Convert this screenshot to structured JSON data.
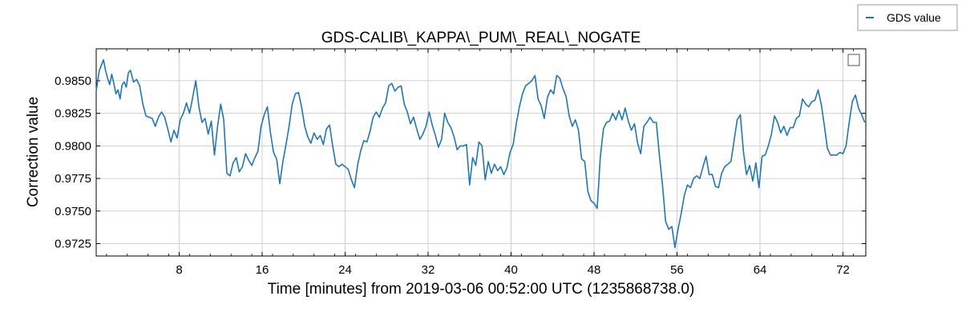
{
  "chart_data": {
    "type": "line",
    "title": "GDS-CALIB\\_KAPPA\\_PUM\\_REAL\\_NOGATE",
    "xlabel": "Time [minutes] from 2019-03-06 00:52:00 UTC (1235868738.0)",
    "ylabel": "Correction value",
    "xlim": [
      0,
      74.2
    ],
    "ylim": [
      0.97155,
      0.98745
    ],
    "xticks": [
      8,
      16,
      24,
      32,
      40,
      48,
      56,
      64,
      72
    ],
    "yticks": [
      0.9725,
      0.975,
      0.9775,
      0.98,
      0.9825,
      0.985
    ],
    "xtick_labels": [
      "8",
      "16",
      "24",
      "32",
      "40",
      "48",
      "56",
      "64",
      "72"
    ],
    "ytick_labels": [
      "0.9725",
      "0.9750",
      "0.9775",
      "0.9800",
      "0.9825",
      "0.9850"
    ],
    "grid": true,
    "legend": {
      "placement": "outside top-right",
      "entries": [
        "GDS value"
      ]
    },
    "series": [
      {
        "name": "GDS value",
        "color": "#1f77b4",
        "x": [
          0.0,
          0.3,
          0.5,
          0.7,
          0.9,
          1.1,
          1.3,
          1.5,
          1.7,
          1.9,
          2.1,
          2.3,
          2.5,
          2.7,
          2.9,
          3.1,
          3.3,
          3.6,
          3.9,
          4.2,
          4.5,
          4.8,
          5.1,
          5.4,
          5.7,
          6.0,
          6.3,
          6.6,
          6.9,
          7.2,
          7.5,
          7.8,
          8.1,
          8.4,
          8.7,
          9.0,
          9.3,
          9.6,
          9.9,
          10.2,
          10.5,
          10.8,
          11.1,
          11.4,
          11.7,
          12.0,
          12.3,
          12.6,
          12.9,
          13.2,
          13.5,
          13.8,
          14.1,
          14.4,
          14.7,
          15.0,
          15.3,
          15.6,
          15.9,
          16.2,
          16.5,
          16.8,
          17.1,
          17.4,
          17.7,
          18.0,
          18.3,
          18.6,
          18.9,
          19.2,
          19.5,
          19.8,
          20.1,
          20.4,
          20.7,
          21.0,
          21.3,
          21.6,
          21.9,
          22.2,
          22.5,
          22.8,
          23.1,
          23.4,
          23.7,
          24.0,
          24.3,
          24.6,
          24.9,
          25.2,
          25.5,
          25.8,
          26.1,
          26.4,
          26.7,
          27.0,
          27.3,
          27.6,
          27.9,
          28.2,
          28.5,
          28.8,
          29.1,
          29.4,
          29.7,
          30.0,
          30.3,
          30.6,
          30.9,
          31.2,
          31.5,
          31.8,
          32.1,
          32.4,
          32.7,
          33.0,
          33.3,
          33.6,
          33.9,
          34.2,
          34.5,
          34.8,
          35.1,
          35.4,
          35.7,
          36.0,
          36.3,
          36.6,
          36.9,
          37.2,
          37.5,
          37.8,
          38.1,
          38.4,
          38.7,
          39.0,
          39.3,
          39.6,
          39.9,
          40.2,
          40.5,
          40.8,
          41.1,
          41.4,
          41.7,
          42.0,
          42.3,
          42.6,
          42.9,
          43.2,
          43.5,
          43.8,
          44.1,
          44.4,
          44.7,
          45.0,
          45.3,
          45.6,
          45.9,
          46.2,
          46.5,
          46.8,
          47.1,
          47.4,
          47.7,
          48.0,
          48.3,
          48.6,
          48.9,
          49.2,
          49.5,
          49.8,
          50.1,
          50.4,
          50.7,
          51.0,
          51.3,
          51.6,
          51.9,
          52.2,
          52.5,
          52.8,
          53.1,
          53.4,
          53.7,
          54.0,
          54.3,
          54.6,
          54.9,
          55.2,
          55.5,
          55.8,
          56.1,
          56.4,
          56.7,
          57.0,
          57.3,
          57.6,
          57.9,
          58.2,
          58.5,
          58.8,
          59.1,
          59.4,
          59.7,
          60.0,
          60.3,
          60.6,
          60.9,
          61.2,
          61.5,
          61.8,
          62.1,
          62.4,
          62.7,
          63.0,
          63.3,
          63.6,
          63.9,
          64.2,
          64.5,
          64.8,
          65.1,
          65.4,
          65.7,
          66.0,
          66.3,
          66.6,
          66.9,
          67.2,
          67.5,
          67.8,
          68.1,
          68.4,
          68.7,
          69.0,
          69.3,
          69.6,
          69.9,
          70.2,
          70.5,
          70.8,
          71.1,
          71.4,
          71.7,
          72.0,
          72.3,
          72.6,
          72.9,
          73.2,
          73.5,
          73.8,
          74.1
        ],
        "y": [
          0.9842,
          0.9858,
          0.9862,
          0.9866,
          0.9858,
          0.9852,
          0.9847,
          0.9855,
          0.9848,
          0.984,
          0.9843,
          0.9836,
          0.9847,
          0.9849,
          0.9845,
          0.9856,
          0.9858,
          0.9849,
          0.9851,
          0.9846,
          0.9832,
          0.9823,
          0.9822,
          0.9821,
          0.9815,
          0.9822,
          0.9826,
          0.9822,
          0.9813,
          0.9803,
          0.9812,
          0.9806,
          0.982,
          0.9825,
          0.9833,
          0.9825,
          0.9837,
          0.985,
          0.983,
          0.9818,
          0.9821,
          0.9809,
          0.9819,
          0.9793,
          0.9815,
          0.9832,
          0.982,
          0.9779,
          0.9777,
          0.9787,
          0.9791,
          0.978,
          0.9784,
          0.9794,
          0.9789,
          0.9785,
          0.9791,
          0.9796,
          0.9815,
          0.9824,
          0.983,
          0.981,
          0.9795,
          0.979,
          0.9771,
          0.9788,
          0.9801,
          0.9815,
          0.9832,
          0.984,
          0.9841,
          0.983,
          0.9815,
          0.9807,
          0.9802,
          0.981,
          0.9805,
          0.9808,
          0.9801,
          0.9813,
          0.9816,
          0.98,
          0.9786,
          0.9784,
          0.9786,
          0.9784,
          0.9782,
          0.9774,
          0.9768,
          0.9785,
          0.9796,
          0.9804,
          0.9803,
          0.9811,
          0.9822,
          0.9826,
          0.9822,
          0.9829,
          0.9833,
          0.9846,
          0.9848,
          0.9842,
          0.9845,
          0.9846,
          0.9832,
          0.9826,
          0.9817,
          0.9822,
          0.9813,
          0.9805,
          0.9809,
          0.9815,
          0.9826,
          0.9816,
          0.9808,
          0.9799,
          0.9805,
          0.9825,
          0.9818,
          0.9814,
          0.9807,
          0.9797,
          0.98,
          0.98,
          0.9801,
          0.977,
          0.9791,
          0.9785,
          0.9803,
          0.98,
          0.9774,
          0.9788,
          0.9779,
          0.9786,
          0.9781,
          0.9784,
          0.9778,
          0.9783,
          0.9795,
          0.9801,
          0.9817,
          0.983,
          0.984,
          0.9846,
          0.9848,
          0.985,
          0.9854,
          0.9836,
          0.9831,
          0.9821,
          0.9837,
          0.9843,
          0.984,
          0.9854,
          0.9852,
          0.9844,
          0.9838,
          0.9823,
          0.9815,
          0.982,
          0.9812,
          0.979,
          0.9788,
          0.9765,
          0.9758,
          0.9756,
          0.9752,
          0.9791,
          0.9813,
          0.9818,
          0.9819,
          0.9825,
          0.982,
          0.9827,
          0.982,
          0.9829,
          0.9819,
          0.9812,
          0.9817,
          0.9802,
          0.9794,
          0.9815,
          0.9818,
          0.9822,
          0.9818,
          0.9818,
          0.9793,
          0.977,
          0.9742,
          0.9736,
          0.9738,
          0.9722,
          0.9736,
          0.9748,
          0.9762,
          0.977,
          0.9768,
          0.9775,
          0.9777,
          0.9775,
          0.9784,
          0.9792,
          0.9778,
          0.9778,
          0.9769,
          0.9768,
          0.9779,
          0.9784,
          0.9786,
          0.9788,
          0.9804,
          0.982,
          0.9824,
          0.9796,
          0.9778,
          0.9785,
          0.9773,
          0.9787,
          0.9768,
          0.9792,
          0.9793,
          0.98,
          0.9809,
          0.9823,
          0.9818,
          0.981,
          0.9815,
          0.9808,
          0.9814,
          0.9814,
          0.9821,
          0.9823,
          0.9836,
          0.9832,
          0.983,
          0.9834,
          0.9835,
          0.9843,
          0.9832,
          0.9816,
          0.9798,
          0.9793,
          0.9793,
          0.9793,
          0.9795,
          0.9794,
          0.98,
          0.9818,
          0.9834,
          0.9839,
          0.9829,
          0.9824,
          0.9818
        ]
      }
    ]
  }
}
